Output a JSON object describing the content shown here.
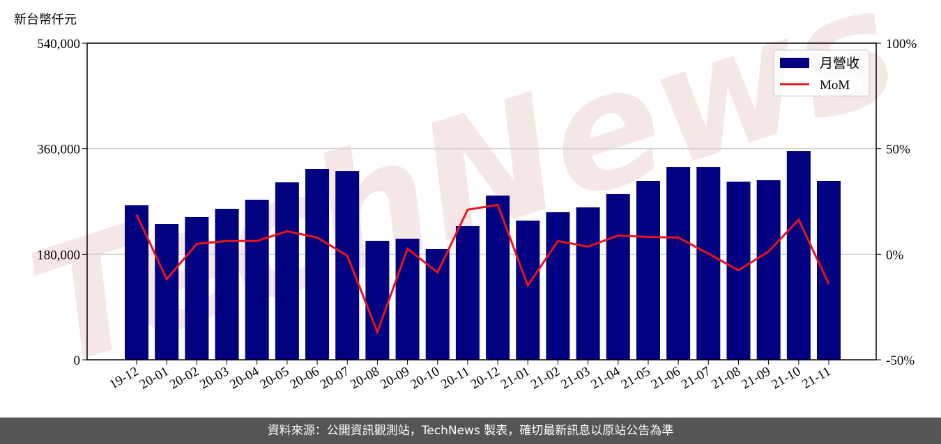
{
  "chart_data": {
    "type": "bar_line",
    "ylabel": "新台幣仟元",
    "watermark": "TechNews",
    "categories": [
      "19-12",
      "20-01",
      "20-02",
      "20-03",
      "20-04",
      "20-05",
      "20-06",
      "20-07",
      "20-08",
      "20-09",
      "20-10",
      "20-11",
      "20-12",
      "21-01",
      "21-02",
      "21-03",
      "21-04",
      "21-05",
      "21-06",
      "21-07",
      "21-08",
      "21-09",
      "21-10",
      "21-11"
    ],
    "series": [
      {
        "name": "月營收",
        "color": "#000080",
        "type": "bar",
        "values": [
          263500,
          231400,
          243300,
          257500,
          273000,
          302600,
          325200,
          321600,
          202900,
          206500,
          188700,
          227900,
          280100,
          237400,
          251600,
          259900,
          282500,
          305000,
          328700,
          328700,
          303800,
          306200,
          356000,
          305000
        ]
      },
      {
        "name": "MoM",
        "color": "#e8141a",
        "type": "line",
        "axis": "y2",
        "values": [
          18.8,
          -11.8,
          4.9,
          6.3,
          6.3,
          10.9,
          7.9,
          -0.7,
          -36.8,
          2.6,
          -8.6,
          21.1,
          23.4,
          -14.8,
          6.3,
          3.6,
          8.9,
          8.2,
          7.9,
          0.3,
          -7.6,
          1.3,
          16.4,
          -14.1
        ]
      }
    ],
    "ylim": [
      0,
      540000
    ],
    "yticks": [
      0,
      {
        "value": 180000,
        "label": "180,000"
      },
      {
        "value": 360000,
        "label": "360,000"
      },
      {
        "value": 540000,
        "label": "540,000"
      }
    ],
    "y2lim": [
      -50,
      100
    ],
    "y2ticks": [
      {
        "value": -50,
        "label": "-50%"
      },
      {
        "value": 0,
        "label": "0%"
      },
      {
        "value": 50,
        "label": "50%"
      },
      {
        "value": 100,
        "label": "100%"
      }
    ],
    "grid": true,
    "legend": "upper right",
    "footer": "資料來源：公開資訊觀測站，TechNews 製表，確切最新訊息以原站公告為準"
  }
}
